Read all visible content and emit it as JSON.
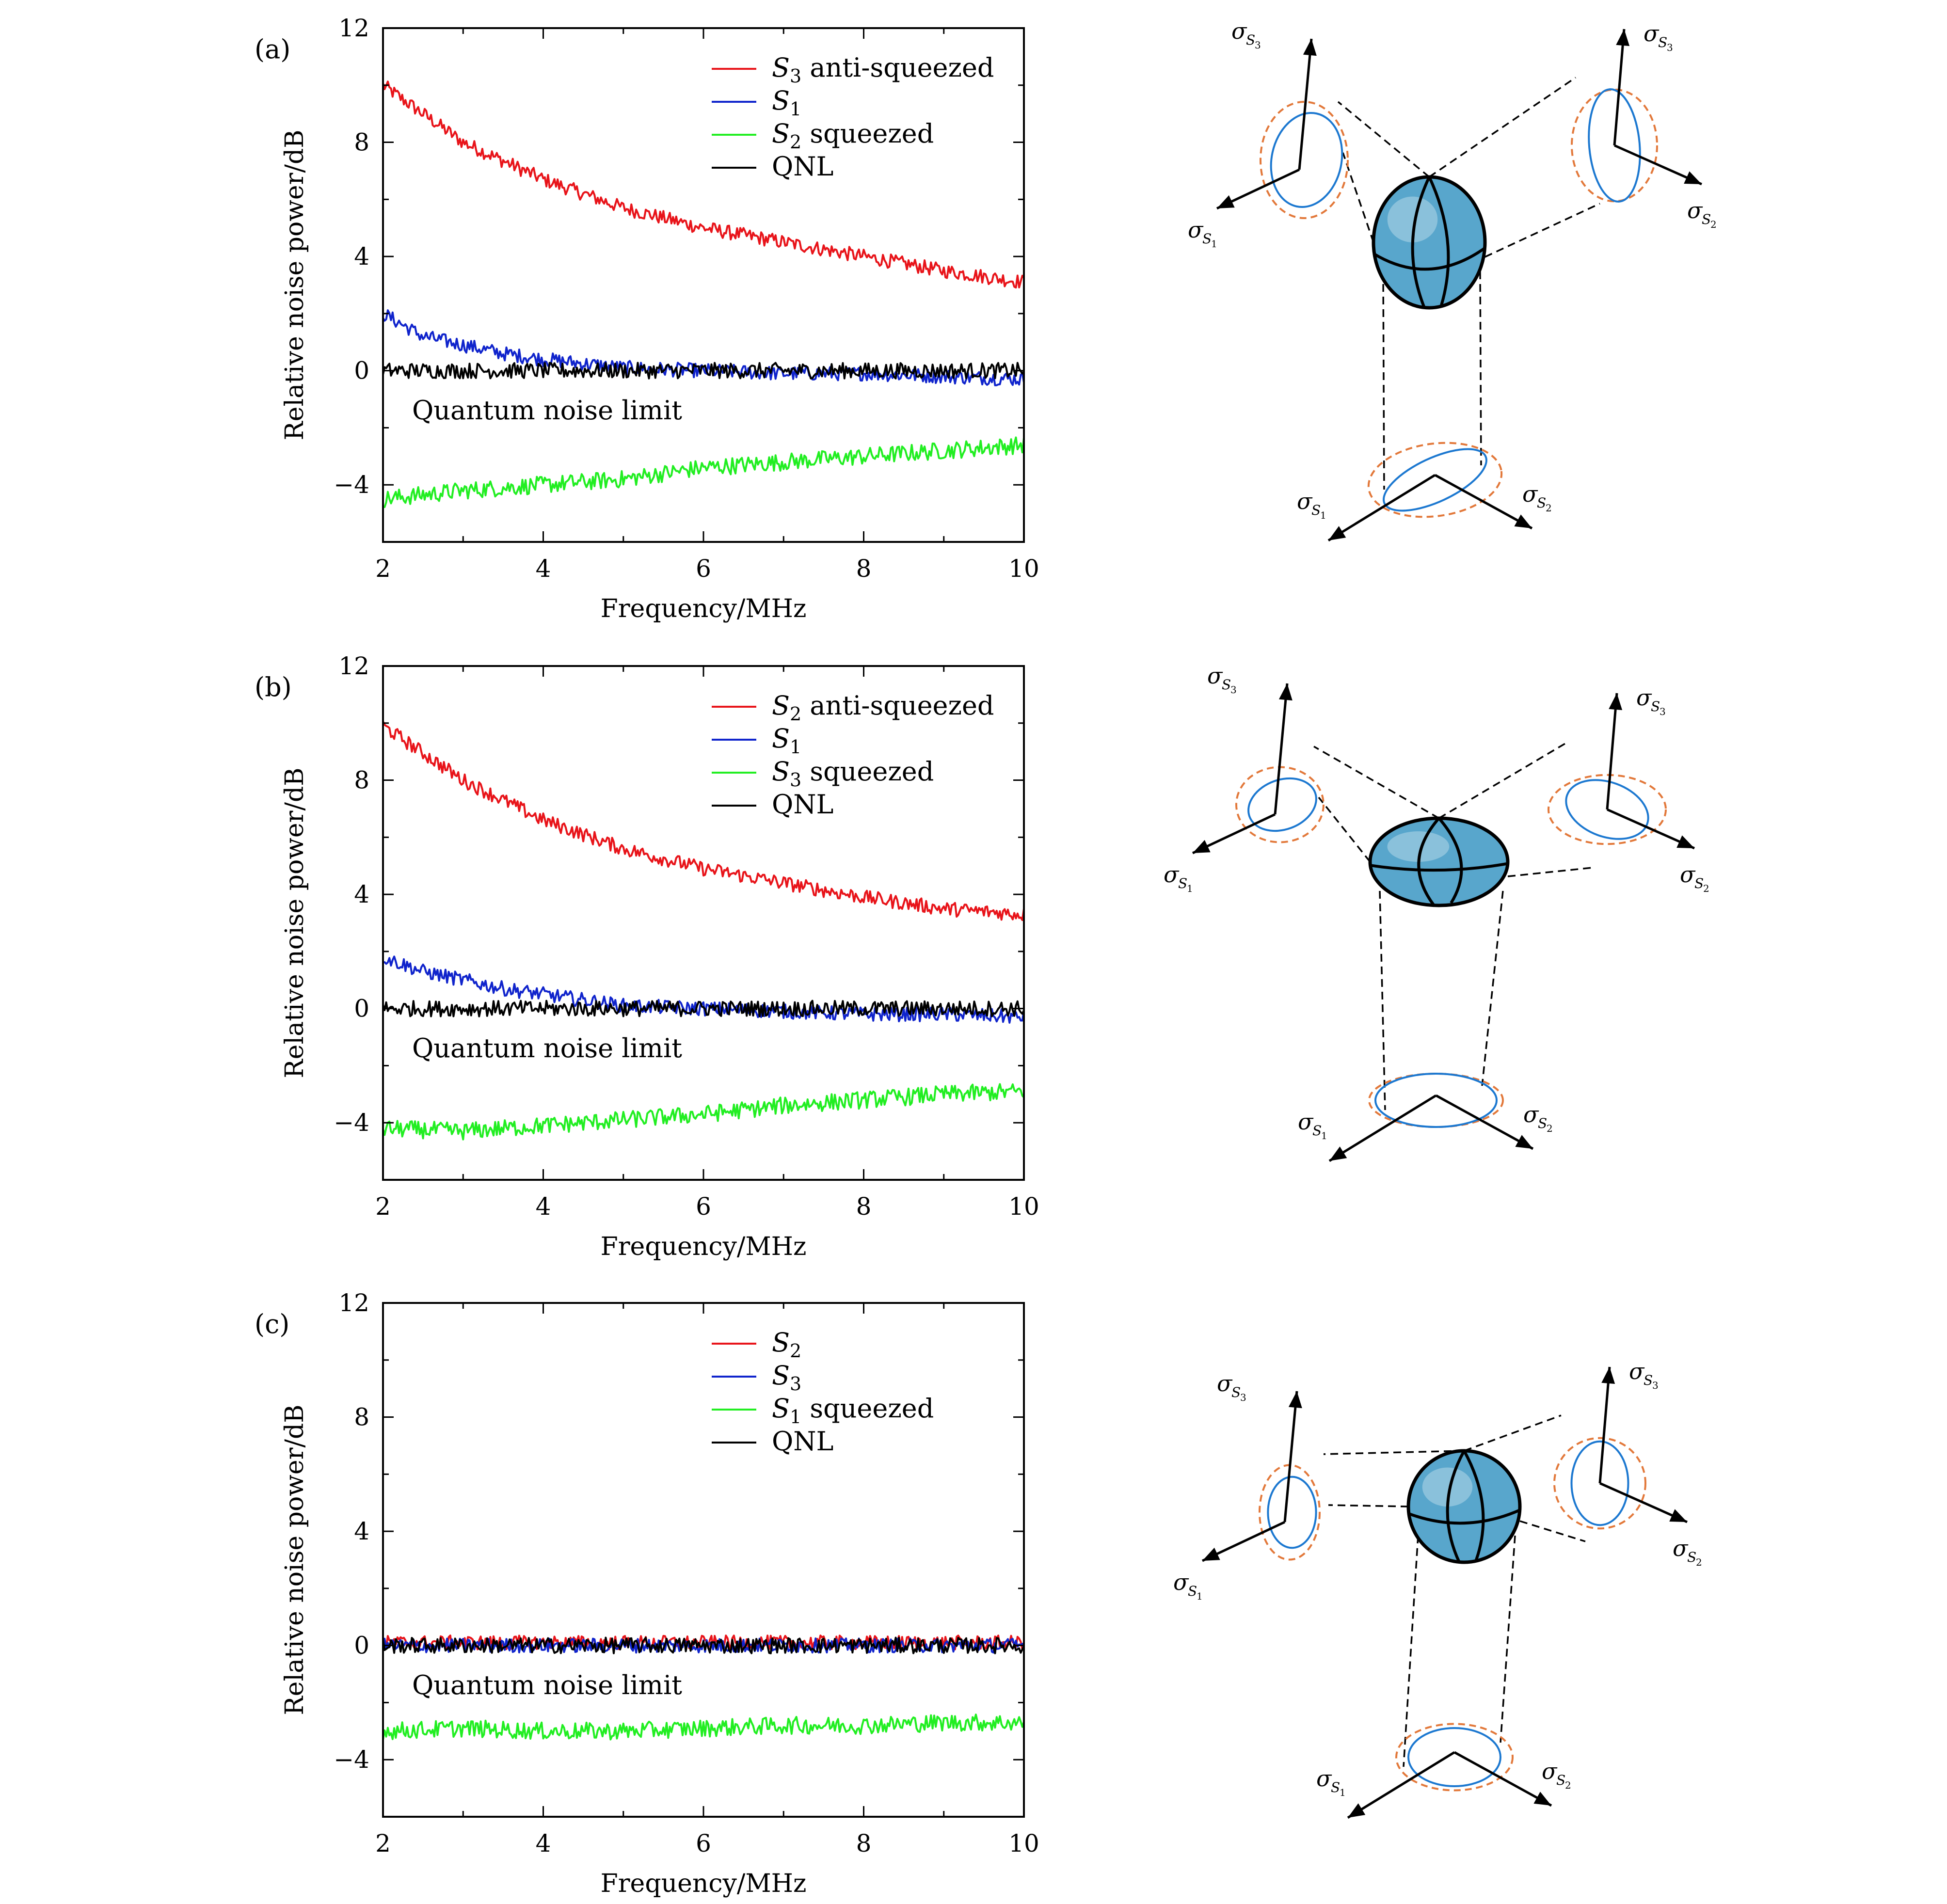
{
  "colors": {
    "red": "#e8141a",
    "blue": "#1024cc",
    "green": "#22ee22",
    "black": "#000000",
    "ellipse_blue": "#1c78d0",
    "ellipse_orange": "#e2783a",
    "sphere_fill": "#58a6cc"
  },
  "chart_data": [
    {
      "type": "line",
      "panel_label": "(a)",
      "xlabel": "Frequency/MHz",
      "ylabel": "Relative noise power/dB",
      "xlim": [
        2,
        10
      ],
      "ylim": [
        -6,
        12
      ],
      "x_ticks": [
        "2",
        "4",
        "6",
        "8",
        "10"
      ],
      "y_ticks": [
        "12",
        "8",
        "4",
        "0",
        "−4"
      ],
      "annotation": "Quantum noise limit",
      "legend_position": "top-right",
      "grid": false,
      "series": [
        {
          "name_sym": "S",
          "name_sub": "3",
          "name_text": " anti-squeezed",
          "color": "red",
          "x": [
            2,
            3,
            4,
            5,
            6,
            7,
            8,
            9,
            10
          ],
          "y": [
            10.0,
            8.0,
            6.7,
            5.7,
            5.0,
            4.5,
            4.0,
            3.5,
            3.1
          ]
        },
        {
          "name_sym": "S",
          "name_sub": "1",
          "name_text": "",
          "color": "blue",
          "x": [
            2,
            2.5,
            3,
            3.5,
            4,
            5,
            6,
            7,
            8,
            9,
            10
          ],
          "y": [
            2.0,
            1.2,
            0.9,
            0.6,
            0.4,
            0.1,
            0.0,
            -0.1,
            -0.1,
            -0.2,
            -0.3
          ]
        },
        {
          "name_sym": "S",
          "name_sub": "2",
          "name_text": " squeezed",
          "color": "green",
          "x": [
            2,
            3,
            4,
            5,
            6,
            7,
            8,
            9,
            10
          ],
          "y": [
            -4.5,
            -4.2,
            -4.0,
            -3.8,
            -3.4,
            -3.2,
            -3.0,
            -2.8,
            -2.6
          ]
        },
        {
          "name_sym": "",
          "name_sub": "",
          "name_text": "QNL",
          "color": "black",
          "x": [
            2,
            10
          ],
          "y": [
            0,
            0
          ]
        }
      ]
    },
    {
      "type": "line",
      "panel_label": "(b)",
      "xlabel": "Frequency/MHz",
      "ylabel": "Relative noise power/dB",
      "xlim": [
        2,
        10
      ],
      "ylim": [
        -6,
        12
      ],
      "x_ticks": [
        "2",
        "4",
        "6",
        "8",
        "10"
      ],
      "y_ticks": [
        "12",
        "8",
        "4",
        "0",
        "−4"
      ],
      "annotation": "Quantum noise limit",
      "legend_position": "top-right",
      "grid": false,
      "series": [
        {
          "name_sym": "S",
          "name_sub": "2",
          "name_text": " anti-squeezed",
          "color": "red",
          "x": [
            2,
            3,
            4,
            5,
            6,
            7,
            8,
            9,
            10
          ],
          "y": [
            9.9,
            8.0,
            6.6,
            5.6,
            4.9,
            4.4,
            3.9,
            3.5,
            3.3
          ]
        },
        {
          "name_sym": "S",
          "name_sub": "1",
          "name_text": "",
          "color": "blue",
          "x": [
            2,
            2.5,
            3,
            3.5,
            4,
            5,
            6,
            7,
            8,
            9,
            10
          ],
          "y": [
            1.8,
            1.3,
            1.0,
            0.7,
            0.5,
            0.1,
            0.0,
            -0.1,
            -0.2,
            -0.2,
            -0.3
          ]
        },
        {
          "name_sym": "S",
          "name_sub": "3",
          "name_text": " squeezed",
          "color": "green",
          "x": [
            2,
            3,
            4,
            5,
            6,
            7,
            8,
            9,
            10
          ],
          "y": [
            -4.2,
            -4.3,
            -4.1,
            -3.9,
            -3.7,
            -3.4,
            -3.2,
            -3.0,
            -2.9
          ]
        },
        {
          "name_sym": "",
          "name_sub": "",
          "name_text": "QNL",
          "color": "black",
          "x": [
            2,
            10
          ],
          "y": [
            0,
            0
          ]
        }
      ]
    },
    {
      "type": "line",
      "panel_label": "(c)",
      "xlabel": "Frequency/MHz",
      "ylabel": "Relative noise power/dB",
      "xlim": [
        2,
        10
      ],
      "ylim": [
        -6,
        12
      ],
      "x_ticks": [
        "2",
        "4",
        "6",
        "8",
        "10"
      ],
      "y_ticks": [
        "12",
        "8",
        "4",
        "0",
        "−4"
      ],
      "annotation": "Quantum noise limit",
      "legend_position": "top-right",
      "grid": false,
      "series": [
        {
          "name_sym": "S",
          "name_sub": "2",
          "name_text": "",
          "color": "red",
          "x": [
            2,
            10
          ],
          "y": [
            0.1,
            0.1
          ]
        },
        {
          "name_sym": "S",
          "name_sub": "3",
          "name_text": "",
          "color": "blue",
          "x": [
            2,
            10
          ],
          "y": [
            0,
            0
          ]
        },
        {
          "name_sym": "S",
          "name_sub": "1",
          "name_text": " squeezed",
          "color": "green",
          "x": [
            2,
            3,
            4,
            5,
            6,
            7,
            8,
            9,
            10
          ],
          "y": [
            -3.0,
            -2.9,
            -3.0,
            -3.0,
            -2.9,
            -2.8,
            -2.8,
            -2.7,
            -2.7
          ]
        },
        {
          "name_sym": "",
          "name_sub": "",
          "name_text": "QNL",
          "color": "black",
          "x": [
            2,
            10
          ],
          "y": [
            0,
            0
          ]
        }
      ]
    }
  ],
  "diagram": {
    "axis_symbol": "σ",
    "axis_sub_symbol": "S",
    "labels": {
      "s1": "1",
      "s2": "2",
      "s3": "3"
    }
  }
}
